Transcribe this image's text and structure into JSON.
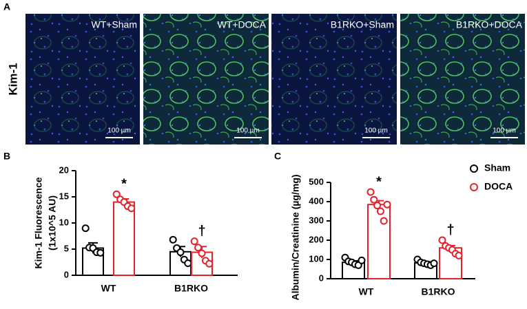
{
  "panel_a": {
    "letter": "A",
    "row_label": "Kim-1",
    "images": [
      {
        "label": "WT+Sham",
        "scale": "100 µm"
      },
      {
        "label": "WT+DOCA",
        "scale": "100 µm"
      },
      {
        "label": "B1RKO+Sham",
        "scale": "100 µm"
      },
      {
        "label": "B1RKO+DOCA",
        "scale": "100 µm"
      }
    ]
  },
  "chart_data": [
    {
      "type": "bar",
      "panel": "B",
      "ylabel": "Kim-1 Fluorescence",
      "ylabel_sub": "(1x10^5 AU)",
      "categories": [
        "WT",
        "B1RKO"
      ],
      "ylim": [
        0,
        20
      ],
      "yticks": [
        0,
        5,
        10,
        15,
        20
      ],
      "legend": false,
      "series": [
        {
          "name": "Sham",
          "color": "#000000",
          "values": [
            5.2,
            4.5
          ],
          "errors": [
            1.0,
            1.0
          ],
          "points": [
            [
              9.0,
              5.3,
              5.2,
              4.4,
              4.3
            ],
            [
              6.8,
              5.2,
              4.4,
              3.0,
              2.3
            ]
          ],
          "annotations": [
            null,
            null
          ]
        },
        {
          "name": "DOCA",
          "color": "#e8202a",
          "values": [
            14.0,
            4.4
          ],
          "errors": [
            0.6,
            1.1
          ],
          "points": [
            [
              15.5,
              14.5,
              14.0,
              13.2,
              12.8
            ],
            [
              6.5,
              5.3,
              4.2,
              2.8,
              2.2
            ]
          ],
          "annotations": [
            "*",
            "†"
          ]
        }
      ]
    },
    {
      "type": "bar",
      "panel": "C",
      "ylabel": "Albumin/Creatinine (µg/mg)",
      "categories": [
        "WT",
        "B1RKO"
      ],
      "ylim": [
        0,
        500
      ],
      "yticks": [
        0,
        100,
        200,
        300,
        400,
        500
      ],
      "legend": true,
      "series": [
        {
          "name": "Sham",
          "color": "#000000",
          "values": [
            85,
            82
          ],
          "errors": [
            8,
            6
          ],
          "points": [
            [
              110,
              90,
              85,
              75,
              70,
              95
            ],
            [
              100,
              85,
              80,
              75,
              70,
              80
            ]
          ],
          "annotations": [
            null,
            null
          ]
        },
        {
          "name": "DOCA",
          "color": "#e8202a",
          "values": [
            385,
            160
          ],
          "errors": [
            20,
            12
          ],
          "points": [
            [
              450,
              410,
              380,
              350,
              300,
              385
            ],
            [
              200,
              170,
              160,
              150,
              130,
              120
            ]
          ],
          "annotations": [
            "*",
            "†"
          ]
        }
      ]
    }
  ]
}
